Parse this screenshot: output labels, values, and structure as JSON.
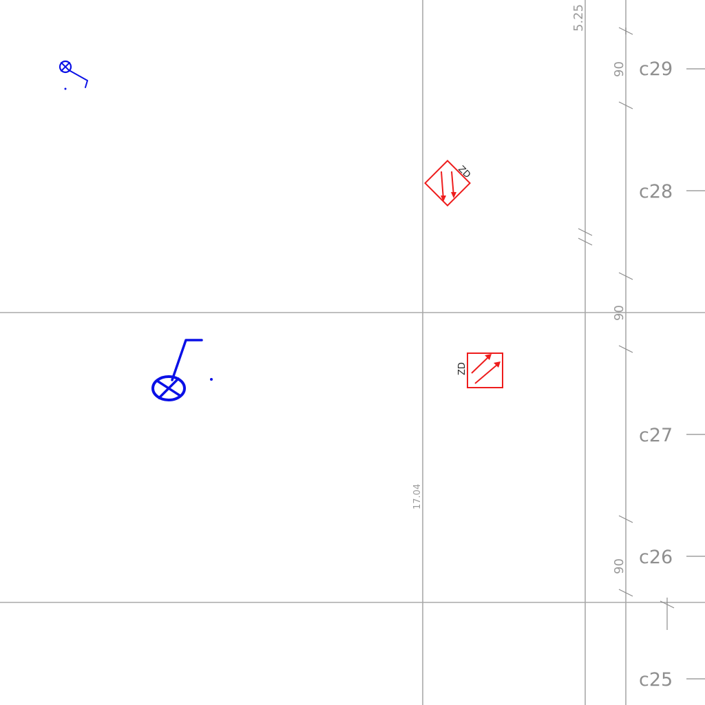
{
  "dimensions": {
    "top": "5.25",
    "seg1": "90",
    "seg2": "90",
    "seg3": "90",
    "vertical": "17.04"
  },
  "grid_labels": {
    "c29": "c29",
    "c28": "c28",
    "c27": "c27",
    "c26": "c26",
    "c25": "c25"
  },
  "symbols": {
    "zd_upper": "ZD",
    "zd_lower": "ZD"
  },
  "colors": {
    "grid": "#a8a8a8",
    "fixture": "#0a10e6",
    "device": "#ee1c1c"
  }
}
